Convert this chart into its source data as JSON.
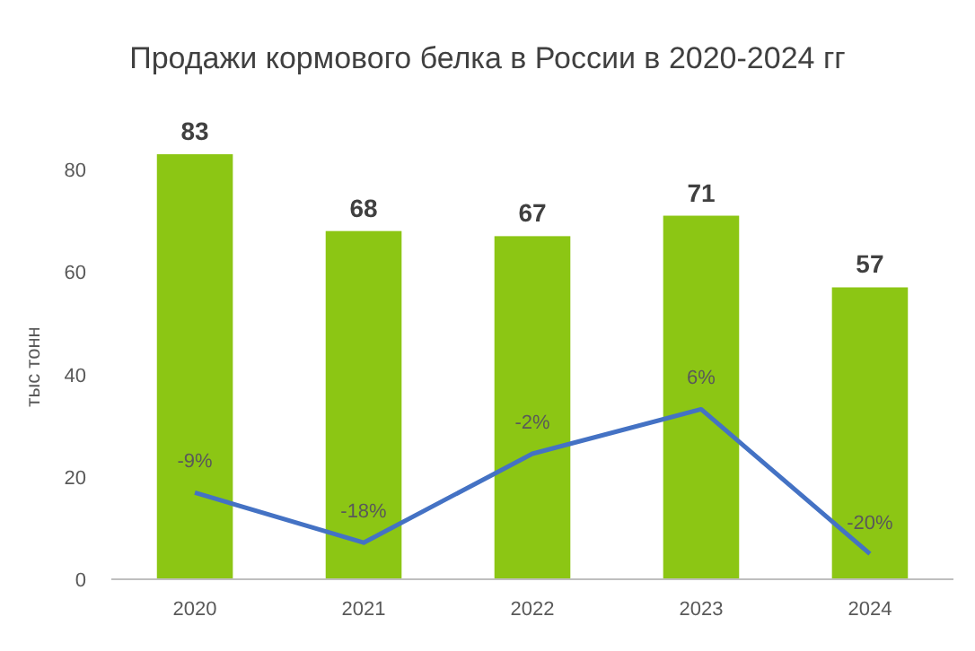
{
  "chart_data": {
    "type": "bar",
    "title": "Продажи кормового белка в России в 2020-2024 гг",
    "ylabel": "тыс тонн",
    "categories": [
      "2020",
      "2021",
      "2022",
      "2023",
      "2024"
    ],
    "series": [
      {
        "color": "#8cc614",
        "values": [
          83,
          68,
          67,
          71,
          57
        ]
      },
      {
        "type": "line",
        "axis": "y2",
        "color": "#4472c4",
        "values": [
          -9,
          -18,
          -2,
          6,
          -20
        ],
        "value_labels": [
          "-9%",
          "-18%",
          "-2%",
          "6%",
          "-20%"
        ]
      }
    ],
    "data_labels": true,
    "ylim": [
      0,
      83
    ],
    "yticks": [
      0,
      20,
      40,
      60,
      80
    ],
    "grid": false,
    "marker": "none",
    "line_style": "solid"
  }
}
